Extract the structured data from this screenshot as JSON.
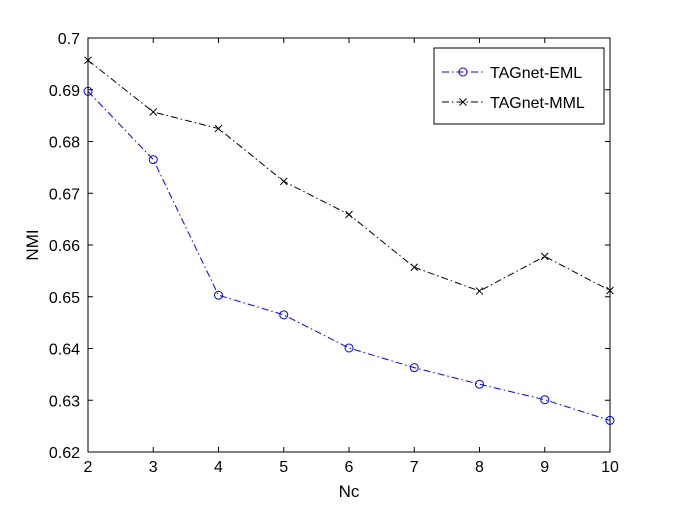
{
  "chart_data": {
    "type": "line",
    "title": "",
    "xlabel": "Nc",
    "ylabel": "NMI",
    "xlim": [
      2,
      10
    ],
    "ylim": [
      0.62,
      0.7
    ],
    "xticks": [
      2,
      3,
      4,
      5,
      6,
      7,
      8,
      9,
      10
    ],
    "yticks": [
      0.62,
      0.63,
      0.64,
      0.65,
      0.66,
      0.67,
      0.68,
      0.69,
      0.7
    ],
    "ytick_labels": [
      "0.62",
      "0.63",
      "0.64",
      "0.65",
      "0.66",
      "0.67",
      "0.68",
      "0.69",
      "0.7"
    ],
    "grid": false,
    "legend_position": "top-right",
    "x": [
      2,
      3,
      4,
      5,
      6,
      7,
      8,
      9,
      10
    ],
    "series": [
      {
        "name": "TAGnet-EML",
        "values": [
          0.6897,
          0.6765,
          0.6503,
          0.6465,
          0.6401,
          0.6363,
          0.6331,
          0.6301,
          0.6261
        ],
        "color": "#0000ff",
        "marker": "circle",
        "line_style": "dash-dot"
      },
      {
        "name": "TAGnet-MML",
        "values": [
          0.6957,
          0.6857,
          0.6825,
          0.6723,
          0.6659,
          0.6557,
          0.6511,
          0.6578,
          0.6512
        ],
        "color": "#000000",
        "marker": "x",
        "line_style": "dash-dot"
      }
    ]
  }
}
